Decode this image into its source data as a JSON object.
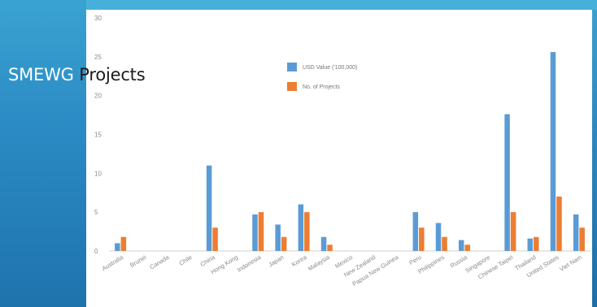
{
  "slide": {
    "title_part1": "SMEWG",
    "title_part2": "Projects"
  },
  "colors": {
    "series_usd": "#5b9bd5",
    "series_count": "#ed7d31",
    "axis": "#d0d0d0"
  },
  "chart_data": {
    "type": "bar",
    "title": "",
    "xlabel": "",
    "ylabel": "",
    "ylim": [
      0,
      30
    ],
    "yticks": [
      "0",
      "5",
      "10",
      "15",
      "20",
      "25",
      "30"
    ],
    "legend_position": "top-center",
    "grid": false,
    "categories": [
      "Australia",
      "Brunei",
      "Canada",
      "Chile",
      "China",
      "Hong Kong",
      "Indonesia",
      "Japan",
      "Korea",
      "Malaysia",
      "Mexico",
      "New Zealand",
      "Papua New Guinea",
      "Peru",
      "Philippines",
      "Russia",
      "Singapore",
      "Chinese Taipei",
      "Thailand",
      "United States",
      "Viet Nam"
    ],
    "series": [
      {
        "name": "USD Value ('100,000)",
        "values": [
          1,
          0,
          0,
          0,
          11,
          0,
          4.7,
          3.4,
          6,
          1.8,
          0,
          0,
          0,
          5,
          3.6,
          1.4,
          0,
          17.6,
          1.6,
          25.6,
          4.7
        ]
      },
      {
        "name": "No. of Projects",
        "values": [
          1.8,
          0,
          0,
          0,
          3,
          0,
          5,
          1.8,
          5,
          0.8,
          0,
          0,
          0,
          3,
          1.8,
          0.8,
          0,
          5,
          1.8,
          7,
          3
        ]
      }
    ]
  }
}
